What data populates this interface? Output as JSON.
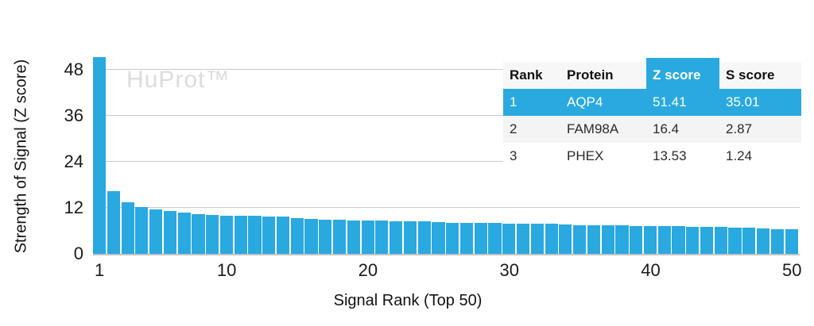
{
  "watermark": "HuProt™",
  "colors": {
    "accent": "#29A9E0",
    "bar": "#29A9E0",
    "grid": "#c9c9c9",
    "watermark": "#dcdcdc"
  },
  "chart_data": {
    "type": "bar",
    "title": "",
    "xlabel": "Signal Rank (Top 50)",
    "ylabel": "Strength of Signal (Z score)",
    "ylim": [
      0,
      52
    ],
    "yticks": [
      0,
      12,
      24,
      36,
      48
    ],
    "xticks": [
      1,
      10,
      20,
      30,
      40,
      50
    ],
    "grid": true,
    "legend": "none",
    "bar_color": "#29A9E0",
    "x": [
      1,
      2,
      3,
      4,
      5,
      6,
      7,
      8,
      9,
      10,
      11,
      12,
      13,
      14,
      15,
      16,
      17,
      18,
      19,
      20,
      21,
      22,
      23,
      24,
      25,
      26,
      27,
      28,
      29,
      30,
      31,
      32,
      33,
      34,
      35,
      36,
      37,
      38,
      39,
      40,
      41,
      42,
      43,
      44,
      45,
      46,
      47,
      48,
      49,
      50
    ],
    "values": [
      51.41,
      16.4,
      13.53,
      12.3,
      11.6,
      11.1,
      10.75,
      10.4,
      10.2,
      10.0,
      9.9,
      9.85,
      9.8,
      9.7,
      9.4,
      9.15,
      9.0,
      8.85,
      8.7,
      8.65,
      8.6,
      8.5,
      8.45,
      8.4,
      8.2,
      8.15,
      8.1,
      8.05,
      8.0,
      7.95,
      7.9,
      7.85,
      7.8,
      7.6,
      7.5,
      7.45,
      7.4,
      7.35,
      7.3,
      7.25,
      7.2,
      7.15,
      7.1,
      7.05,
      7.0,
      6.9,
      6.8,
      6.65,
      6.5,
      6.4
    ]
  },
  "table": {
    "headers": [
      "Rank",
      "Protein",
      "Z score",
      "S score"
    ],
    "highlighted_column": "Z score",
    "rows": [
      {
        "rank": "1",
        "protein": "AQP4",
        "z": "51.41",
        "s": "35.01"
      },
      {
        "rank": "2",
        "protein": "FAM98A",
        "z": "16.4",
        "s": "2.87"
      },
      {
        "rank": "3",
        "protein": "PHEX",
        "z": "13.53",
        "s": "1.24"
      }
    ]
  }
}
